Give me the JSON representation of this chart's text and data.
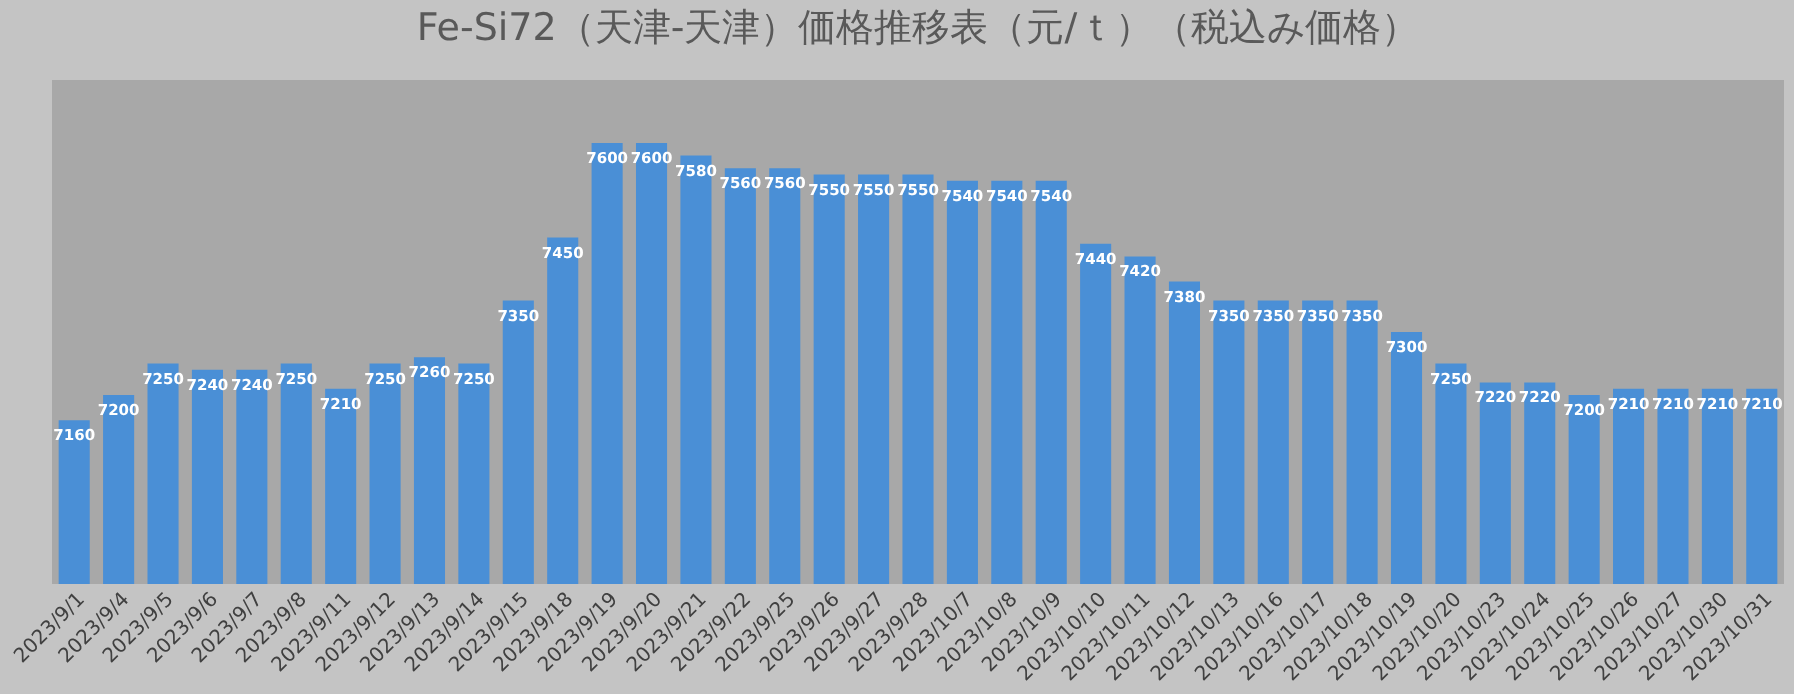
{
  "chart_data": {
    "type": "bar",
    "title": "Fe-Si72（天津-天津）価格推移表（元/ｔ）（税込み価格）",
    "categories": [
      "2023/9/1",
      "2023/9/4",
      "2023/9/5",
      "2023/9/6",
      "2023/9/7",
      "2023/9/8",
      "2023/9/11",
      "2023/9/12",
      "2023/9/13",
      "2023/9/14",
      "2023/9/15",
      "2023/9/18",
      "2023/9/19",
      "2023/9/20",
      "2023/9/21",
      "2023/9/22",
      "2023/9/25",
      "2023/9/26",
      "2023/9/27",
      "2023/9/28",
      "2023/10/7",
      "2023/10/8",
      "2023/10/9",
      "2023/10/10",
      "2023/10/11",
      "2023/10/12",
      "2023/10/13",
      "2023/10/16",
      "2023/10/17",
      "2023/10/18",
      "2023/10/19",
      "2023/10/20",
      "2023/10/23",
      "2023/10/24",
      "2023/10/25",
      "2023/10/26",
      "2023/10/27",
      "2023/10/30",
      "2023/10/31"
    ],
    "values": [
      7160,
      7200,
      7250,
      7240,
      7240,
      7250,
      7210,
      7250,
      7260,
      7250,
      7350,
      7450,
      7600,
      7600,
      7580,
      7560,
      7560,
      7550,
      7550,
      7550,
      7540,
      7540,
      7540,
      7440,
      7420,
      7380,
      7350,
      7350,
      7350,
      7350,
      7300,
      7250,
      7220,
      7220,
      7200,
      7210,
      7210,
      7210,
      7210
    ],
    "color": "#4a8fd6",
    "ylim": [
      6900,
      7700
    ],
    "data_labels": true,
    "tick_labels": "x",
    "grid": false
  }
}
